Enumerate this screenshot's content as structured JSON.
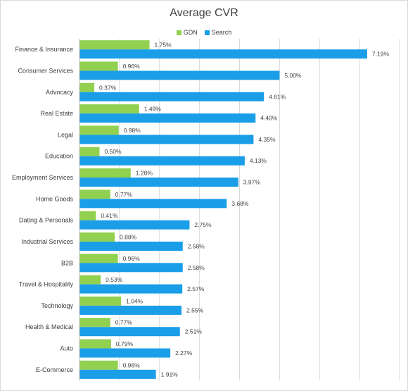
{
  "chart_data": {
    "type": "bar",
    "orientation": "horizontal",
    "title": "Average CVR",
    "legend_position": "top",
    "grid": true,
    "xlim": [
      0,
      8
    ],
    "categories": [
      "Finance & Insurance",
      "Consumer Services",
      "Advocacy",
      "Real Estate",
      "Legal",
      "Education",
      "Employment Services",
      "Home Goods",
      "Dating & Personals",
      "Industrial Services",
      "B2B",
      "Travel & Hospitality",
      "Technology",
      "Health & Medical",
      "Auto",
      "E-Commerce"
    ],
    "series": [
      {
        "name": "GDN",
        "color": "#92d050",
        "values": [
          1.75,
          0.96,
          0.37,
          1.49,
          0.98,
          0.5,
          1.28,
          0.77,
          0.41,
          0.88,
          0.96,
          0.53,
          1.04,
          0.77,
          0.79,
          0.96
        ],
        "labels": [
          "1.75%",
          "0.96%",
          "0.37%",
          "1.49%",
          "0.98%",
          "0.50%",
          "1.28%",
          "0.77%",
          "0.41%",
          "0.88%",
          "0.96%",
          "0.53%",
          "1.04%",
          "0.77%",
          "0.79%",
          "0.96%"
        ]
      },
      {
        "name": "Search",
        "color": "#1a9ee8",
        "values": [
          7.19,
          5.0,
          4.61,
          4.4,
          4.35,
          4.13,
          3.97,
          3.68,
          2.75,
          2.58,
          2.58,
          2.57,
          2.55,
          2.51,
          2.27,
          1.91
        ],
        "labels": [
          "7.19%",
          "5.00%",
          "4.61%",
          "4.40%",
          "4.35%",
          "4.13%",
          "3.97%",
          "3.68%",
          "2.75%",
          "2.58%",
          "2.58%",
          "2.57%",
          "2.55%",
          "2.51%",
          "2.27%",
          "1.91%"
        ]
      }
    ]
  }
}
